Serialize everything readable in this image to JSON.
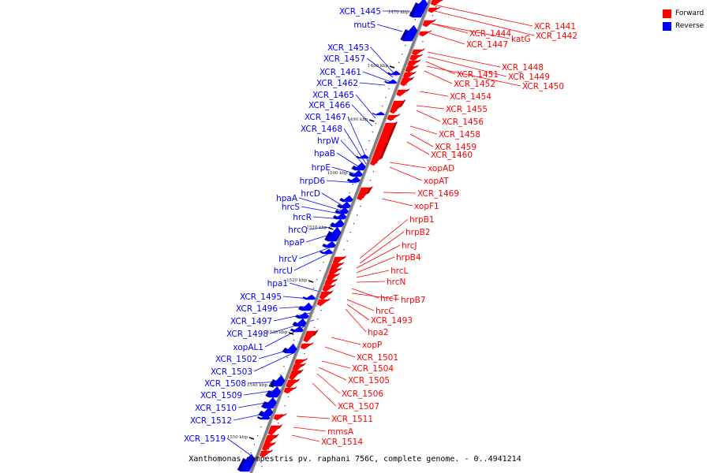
{
  "caption": "Xanthomonas campestris pv. raphani 756C, complete genome. - 0..4941214",
  "legend": [
    {
      "label": "Forward",
      "color": "#ff0000"
    },
    {
      "label": "Reverse",
      "color": "#0000ff"
    }
  ],
  "colors": {
    "forward": "#ff0000",
    "reverse": "#0000ff",
    "axis": "#808080",
    "tick": "#000000"
  },
  "scale_marks": [
    "1470 kbp",
    "1480 kbp",
    "1490 kbp",
    "1500 kbp",
    "1510 kbp",
    "1520 kbp",
    "1530 kbp",
    "1540 kbp",
    "1550 kbp"
  ],
  "forward_labels": [
    "XCR_1441",
    "XCR_1442",
    "XCR_1444",
    "katG",
    "XCR_1447",
    "XCR_1448",
    "XCR_1449",
    "XCR_1451",
    "XCR_1450",
    "XCR_1452",
    "XCR_1454",
    "XCR_1455",
    "XCR_1456",
    "XCR_1458",
    "XCR_1459",
    "XCR_1460",
    "xopAD",
    "xopAT",
    "XCR_1469",
    "xopF1",
    "hrpB1",
    "hrpB2",
    "hrcJ",
    "hrpB4",
    "hrcL",
    "hrcN",
    "hrcT",
    "hrpB7",
    "hrcC",
    "XCR_1493",
    "hpa2",
    "xopP",
    "XCR_1501",
    "XCR_1504",
    "XCR_1505",
    "XCR_1506",
    "XCR_1507",
    "XCR_1511",
    "mmsA",
    "XCR_1514"
  ],
  "reverse_labels": [
    "XCR_1445",
    "mutS",
    "XCR_1453",
    "XCR_1457",
    "XCR_1461",
    "XCR_1462",
    "XCR_1465",
    "XCR_1466",
    "XCR_1467",
    "XCR_1468",
    "hrpW",
    "hpaB",
    "hrpE",
    "hrpD6",
    "hpaA",
    "hrcD",
    "hrcS",
    "hrcR",
    "hrcQ",
    "hpaP",
    "hrcV",
    "hrcU",
    "hpa1",
    "XCR_1495",
    "XCR_1496",
    "XCR_1497",
    "XCR_1498",
    "xopAL1",
    "XCR_1502",
    "XCR_1503",
    "XCR_1508",
    "XCR_1509",
    "XCR_1510",
    "XCR_1512",
    "XCR_1519"
  ]
}
